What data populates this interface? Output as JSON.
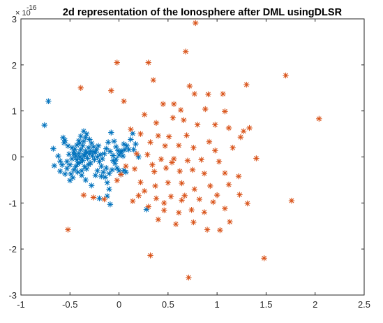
{
  "chart_data": {
    "type": "scatter",
    "title": "2d representation of the Ionosphere after DML usingDLSR",
    "xlabel": "",
    "ylabel": "",
    "xlim": [
      -1,
      2.5
    ],
    "ylim": [
      -3,
      3
    ],
    "x_ticks": [
      "-1",
      "-0.5",
      "0",
      "0.5",
      "1",
      "1.5",
      "2",
      "2.5"
    ],
    "y_ticks": [
      "-3",
      "-2",
      "-1",
      "0",
      "1",
      "2",
      "3"
    ],
    "y_exponent": {
      "base": "10",
      "power": "-16"
    },
    "grid": false,
    "marker": "asterisk",
    "series": [
      {
        "color": "#0072BD",
        "points": [
          [
            -0.72,
            1.21
          ],
          [
            -0.76,
            0.69
          ],
          [
            -0.67,
            0.18
          ],
          [
            -0.62,
            0.02
          ],
          [
            -0.57,
            0.42
          ],
          [
            -0.55,
            0.36
          ],
          [
            -0.52,
            0.24
          ],
          [
            -0.6,
            -0.09
          ],
          [
            -0.66,
            -0.19
          ],
          [
            -0.6,
            -0.31
          ],
          [
            -0.55,
            -0.37
          ],
          [
            -0.53,
            -0.25
          ],
          [
            -0.5,
            -0.17
          ],
          [
            -0.48,
            -0.04
          ],
          [
            -0.46,
            0.06
          ],
          [
            -0.45,
            0.17
          ],
          [
            -0.43,
            0.26
          ],
          [
            -0.41,
            0.35
          ],
          [
            -0.39,
            0.45
          ],
          [
            -0.36,
            0.56
          ],
          [
            -0.33,
            0.5
          ],
          [
            -0.3,
            0.38
          ],
          [
            -0.28,
            0.3
          ],
          [
            -0.26,
            0.22
          ],
          [
            -0.24,
            0.1
          ],
          [
            -0.22,
            0.0
          ],
          [
            -0.2,
            -0.1
          ],
          [
            -0.18,
            -0.2
          ],
          [
            -0.16,
            -0.33
          ],
          [
            -0.14,
            -0.44
          ],
          [
            -0.12,
            -0.56
          ],
          [
            -0.1,
            -0.7
          ],
          [
            -0.12,
            -0.85
          ],
          [
            -0.09,
            -1.03
          ],
          [
            -0.2,
            -0.9
          ],
          [
            -0.28,
            -0.62
          ],
          [
            -0.34,
            -0.5
          ],
          [
            -0.38,
            -0.4
          ],
          [
            -0.42,
            -0.33
          ],
          [
            -0.47,
            -0.45
          ],
          [
            -0.5,
            -0.51
          ],
          [
            -0.53,
            -0.1
          ],
          [
            -0.44,
            -0.21
          ],
          [
            -0.4,
            -0.12
          ],
          [
            -0.38,
            -0.04
          ],
          [
            -0.36,
            0.05
          ],
          [
            -0.34,
            0.13
          ],
          [
            -0.32,
            -0.03
          ],
          [
            -0.3,
            0.07
          ],
          [
            -0.29,
            -0.13
          ],
          [
            -0.27,
            0.02
          ],
          [
            -0.25,
            -0.06
          ],
          [
            -0.41,
            0.08
          ],
          [
            -0.39,
            0.16
          ],
          [
            -0.37,
            0.24
          ],
          [
            -0.35,
            -0.21
          ],
          [
            -0.33,
            -0.26
          ],
          [
            -0.31,
            -0.17
          ],
          [
            -0.43,
            -0.06
          ],
          [
            -0.46,
            0.11
          ],
          [
            -0.48,
            0.2
          ],
          [
            -0.51,
            0.06
          ],
          [
            -0.44,
            0.02
          ],
          [
            -0.42,
            -0.15
          ],
          [
            -0.4,
            0.0
          ],
          [
            -0.37,
            -0.08
          ],
          [
            -0.35,
            0.02
          ],
          [
            -0.33,
            0.09
          ],
          [
            -0.31,
            0.2
          ],
          [
            -0.29,
            0.12
          ],
          [
            -0.36,
            0.34
          ],
          [
            -0.34,
            0.42
          ],
          [
            -0.4,
            0.3
          ],
          [
            -0.46,
            -0.28
          ],
          [
            -0.49,
            -0.37
          ],
          [
            -0.38,
            -0.3
          ],
          [
            -0.26,
            0.11
          ],
          [
            -0.23,
            0.16
          ],
          [
            -0.21,
            0.24
          ],
          [
            -0.19,
            0.05
          ],
          [
            -0.17,
            -0.04
          ],
          [
            -0.15,
            0.07
          ],
          [
            -0.13,
            0.18
          ],
          [
            -0.11,
            0.32
          ],
          [
            -0.09,
            0.12
          ],
          [
            -0.08,
            0.53
          ],
          [
            -0.05,
            0.34
          ],
          [
            -0.03,
            0.22
          ],
          [
            -0.01,
            0.14
          ],
          [
            0.02,
            0.1
          ],
          [
            0.04,
            0.02
          ],
          [
            0.06,
            0.16
          ],
          [
            0.08,
            0.24
          ],
          [
            0.1,
            0.16
          ],
          [
            0.12,
            0.38
          ],
          [
            0.14,
            0.51
          ],
          [
            0.15,
            0.16
          ],
          [
            0.17,
            0.28
          ],
          [
            0.2,
            0.0
          ],
          [
            -0.06,
            -0.08
          ],
          [
            -0.04,
            -0.14
          ],
          [
            -0.02,
            -0.24
          ],
          [
            0.0,
            -0.3
          ],
          [
            0.02,
            -0.38
          ],
          [
            0.05,
            -0.29
          ],
          [
            0.07,
            -0.33
          ],
          [
            -0.13,
            -0.24
          ],
          [
            -0.1,
            -0.36
          ],
          [
            -0.07,
            -0.28
          ],
          [
            -0.18,
            -0.42
          ],
          [
            -0.22,
            -0.3
          ],
          [
            -0.24,
            -0.4
          ],
          [
            -0.06,
            0.03
          ],
          [
            -0.03,
            -0.05
          ],
          [
            0.0,
            0.04
          ],
          [
            0.03,
            0.13
          ],
          [
            0.05,
            0.28
          ],
          [
            0.28,
            -1.14
          ],
          [
            -0.58,
            -0.17
          ],
          [
            -0.56,
            0.31
          ]
        ]
      },
      {
        "color": "#D95319",
        "points": [
          [
            0.78,
            2.91
          ],
          [
            0.68,
            2.29
          ],
          [
            -0.02,
            2.05
          ],
          [
            0.3,
            2.05
          ],
          [
            0.35,
            1.67
          ],
          [
            1.7,
            1.77
          ],
          [
            -0.39,
            1.5
          ],
          [
            -0.08,
            1.44
          ],
          [
            0.72,
            1.54
          ],
          [
            0.77,
            1.37
          ],
          [
            0.91,
            1.36
          ],
          [
            1.06,
            1.37
          ],
          [
            1.3,
            1.57
          ],
          [
            0.05,
            1.21
          ],
          [
            0.45,
            1.15
          ],
          [
            0.56,
            1.15
          ],
          [
            0.63,
            1.02
          ],
          [
            0.88,
            1.04
          ],
          [
            1.08,
            0.99
          ],
          [
            2.04,
            0.83
          ],
          [
            0.26,
            0.92
          ],
          [
            0.38,
            0.74
          ],
          [
            0.55,
            0.85
          ],
          [
            0.66,
            0.8
          ],
          [
            0.8,
            0.7
          ],
          [
            0.98,
            0.7
          ],
          [
            1.12,
            0.63
          ],
          [
            1.33,
            0.63
          ],
          [
            1.27,
            0.56
          ],
          [
            0.12,
            0.6
          ],
          [
            0.22,
            0.5
          ],
          [
            0.4,
            0.46
          ],
          [
            0.51,
            0.44
          ],
          [
            0.69,
            0.47
          ],
          [
            0.92,
            0.33
          ],
          [
            1.24,
            0.43
          ],
          [
            0.32,
            0.32
          ],
          [
            0.47,
            0.24
          ],
          [
            0.61,
            0.25
          ],
          [
            0.76,
            0.2
          ],
          [
            0.98,
            0.14
          ],
          [
            1.16,
            0.2
          ],
          [
            0.18,
            0.07
          ],
          [
            0.29,
            0.05
          ],
          [
            0.43,
            -0.05
          ],
          [
            0.56,
            -0.04
          ],
          [
            0.7,
            -0.08
          ],
          [
            0.84,
            -0.06
          ],
          [
            1.02,
            -0.1
          ],
          [
            1.4,
            -0.03
          ],
          [
            0.07,
            -0.2
          ],
          [
            0.16,
            -0.26
          ],
          [
            0.34,
            -0.17
          ],
          [
            0.48,
            -0.24
          ],
          [
            0.62,
            -0.31
          ],
          [
            0.75,
            -0.28
          ],
          [
            0.87,
            -0.36
          ],
          [
            1.08,
            -0.35
          ],
          [
            1.22,
            -0.42
          ],
          [
            0.02,
            -0.38
          ],
          [
            -0.02,
            -0.51
          ],
          [
            0.22,
            -0.55
          ],
          [
            0.37,
            -0.63
          ],
          [
            0.5,
            -0.56
          ],
          [
            0.64,
            -0.57
          ],
          [
            0.77,
            -0.7
          ],
          [
            0.93,
            -0.63
          ],
          [
            1.12,
            -0.6
          ],
          [
            -0.36,
            -0.83
          ],
          [
            -0.26,
            -0.88
          ],
          [
            -0.15,
            -0.92
          ],
          [
            0.14,
            -0.96
          ],
          [
            0.26,
            -0.74
          ],
          [
            0.38,
            -0.9
          ],
          [
            0.53,
            -0.86
          ],
          [
            0.67,
            -0.84
          ],
          [
            0.82,
            -0.92
          ],
          [
            1.0,
            -0.83
          ],
          [
            1.23,
            -0.82
          ],
          [
            1.76,
            -0.95
          ],
          [
            0.3,
            -1.08
          ],
          [
            0.46,
            -1.16
          ],
          [
            0.61,
            -1.21
          ],
          [
            0.74,
            -1.15
          ],
          [
            0.87,
            -1.2
          ],
          [
            1.08,
            -1.12
          ],
          [
            1.31,
            -1.01
          ],
          [
            0.4,
            -1.36
          ],
          [
            0.58,
            -1.46
          ],
          [
            0.76,
            -1.42
          ],
          [
            1.13,
            -1.41
          ],
          [
            -0.52,
            -1.58
          ],
          [
            0.9,
            -1.58
          ],
          [
            1.03,
            -1.59
          ],
          [
            0.32,
            -2.14
          ],
          [
            1.48,
            -2.2
          ],
          [
            0.71,
            -2.62
          ],
          [
            0.46,
            -1.0
          ],
          [
            0.64,
            -0.94
          ],
          [
            0.96,
            -0.98
          ],
          [
            0.54,
            -0.12
          ],
          [
            0.36,
            -0.32
          ],
          [
            0.2,
            -0.84
          ]
        ]
      }
    ]
  }
}
